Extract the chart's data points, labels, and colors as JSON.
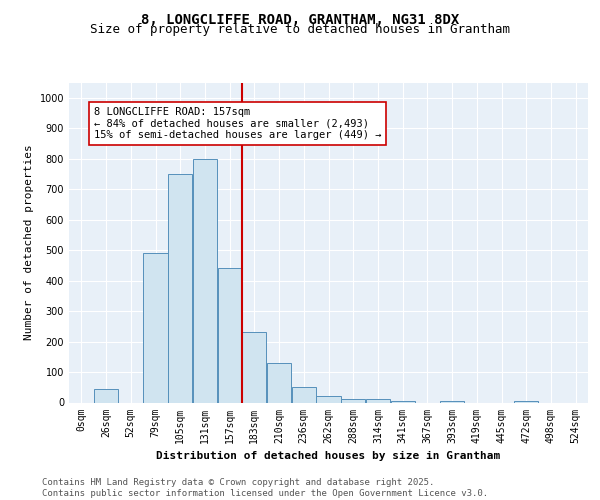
{
  "title1": "8, LONGCLIFFE ROAD, GRANTHAM, NG31 8DX",
  "title2": "Size of property relative to detached houses in Grantham",
  "xlabel": "Distribution of detached houses by size in Grantham",
  "ylabel": "Number of detached properties",
  "bin_labels": [
    "0sqm",
    "26sqm",
    "52sqm",
    "79sqm",
    "105sqm",
    "131sqm",
    "157sqm",
    "183sqm",
    "210sqm",
    "236sqm",
    "262sqm",
    "288sqm",
    "314sqm",
    "341sqm",
    "367sqm",
    "393sqm",
    "419sqm",
    "445sqm",
    "472sqm",
    "498sqm",
    "524sqm"
  ],
  "bar_heights": [
    0,
    43,
    0,
    490,
    750,
    800,
    440,
    230,
    130,
    50,
    20,
    10,
    10,
    5,
    0,
    5,
    0,
    0,
    5,
    0,
    0
  ],
  "bar_color": "#d0e4f0",
  "bar_edge_color": "#5590bb",
  "property_line_index": 6,
  "property_line_color": "#cc0000",
  "annotation_text": "8 LONGCLIFFE ROAD: 157sqm\n← 84% of detached houses are smaller (2,493)\n15% of semi-detached houses are larger (449) →",
  "annotation_box_color": "#ffffff",
  "annotation_box_edge_color": "#cc0000",
  "ylim": [
    0,
    1050
  ],
  "yticks": [
    0,
    100,
    200,
    300,
    400,
    500,
    600,
    700,
    800,
    900,
    1000
  ],
  "background_color": "#e8f0f8",
  "footer_text": "Contains HM Land Registry data © Crown copyright and database right 2025.\nContains public sector information licensed under the Open Government Licence v3.0.",
  "title_fontsize": 10,
  "subtitle_fontsize": 9,
  "annotation_fontsize": 7.5,
  "footer_fontsize": 6.5,
  "tick_fontsize": 7,
  "ylabel_fontsize": 8,
  "xlabel_fontsize": 8
}
